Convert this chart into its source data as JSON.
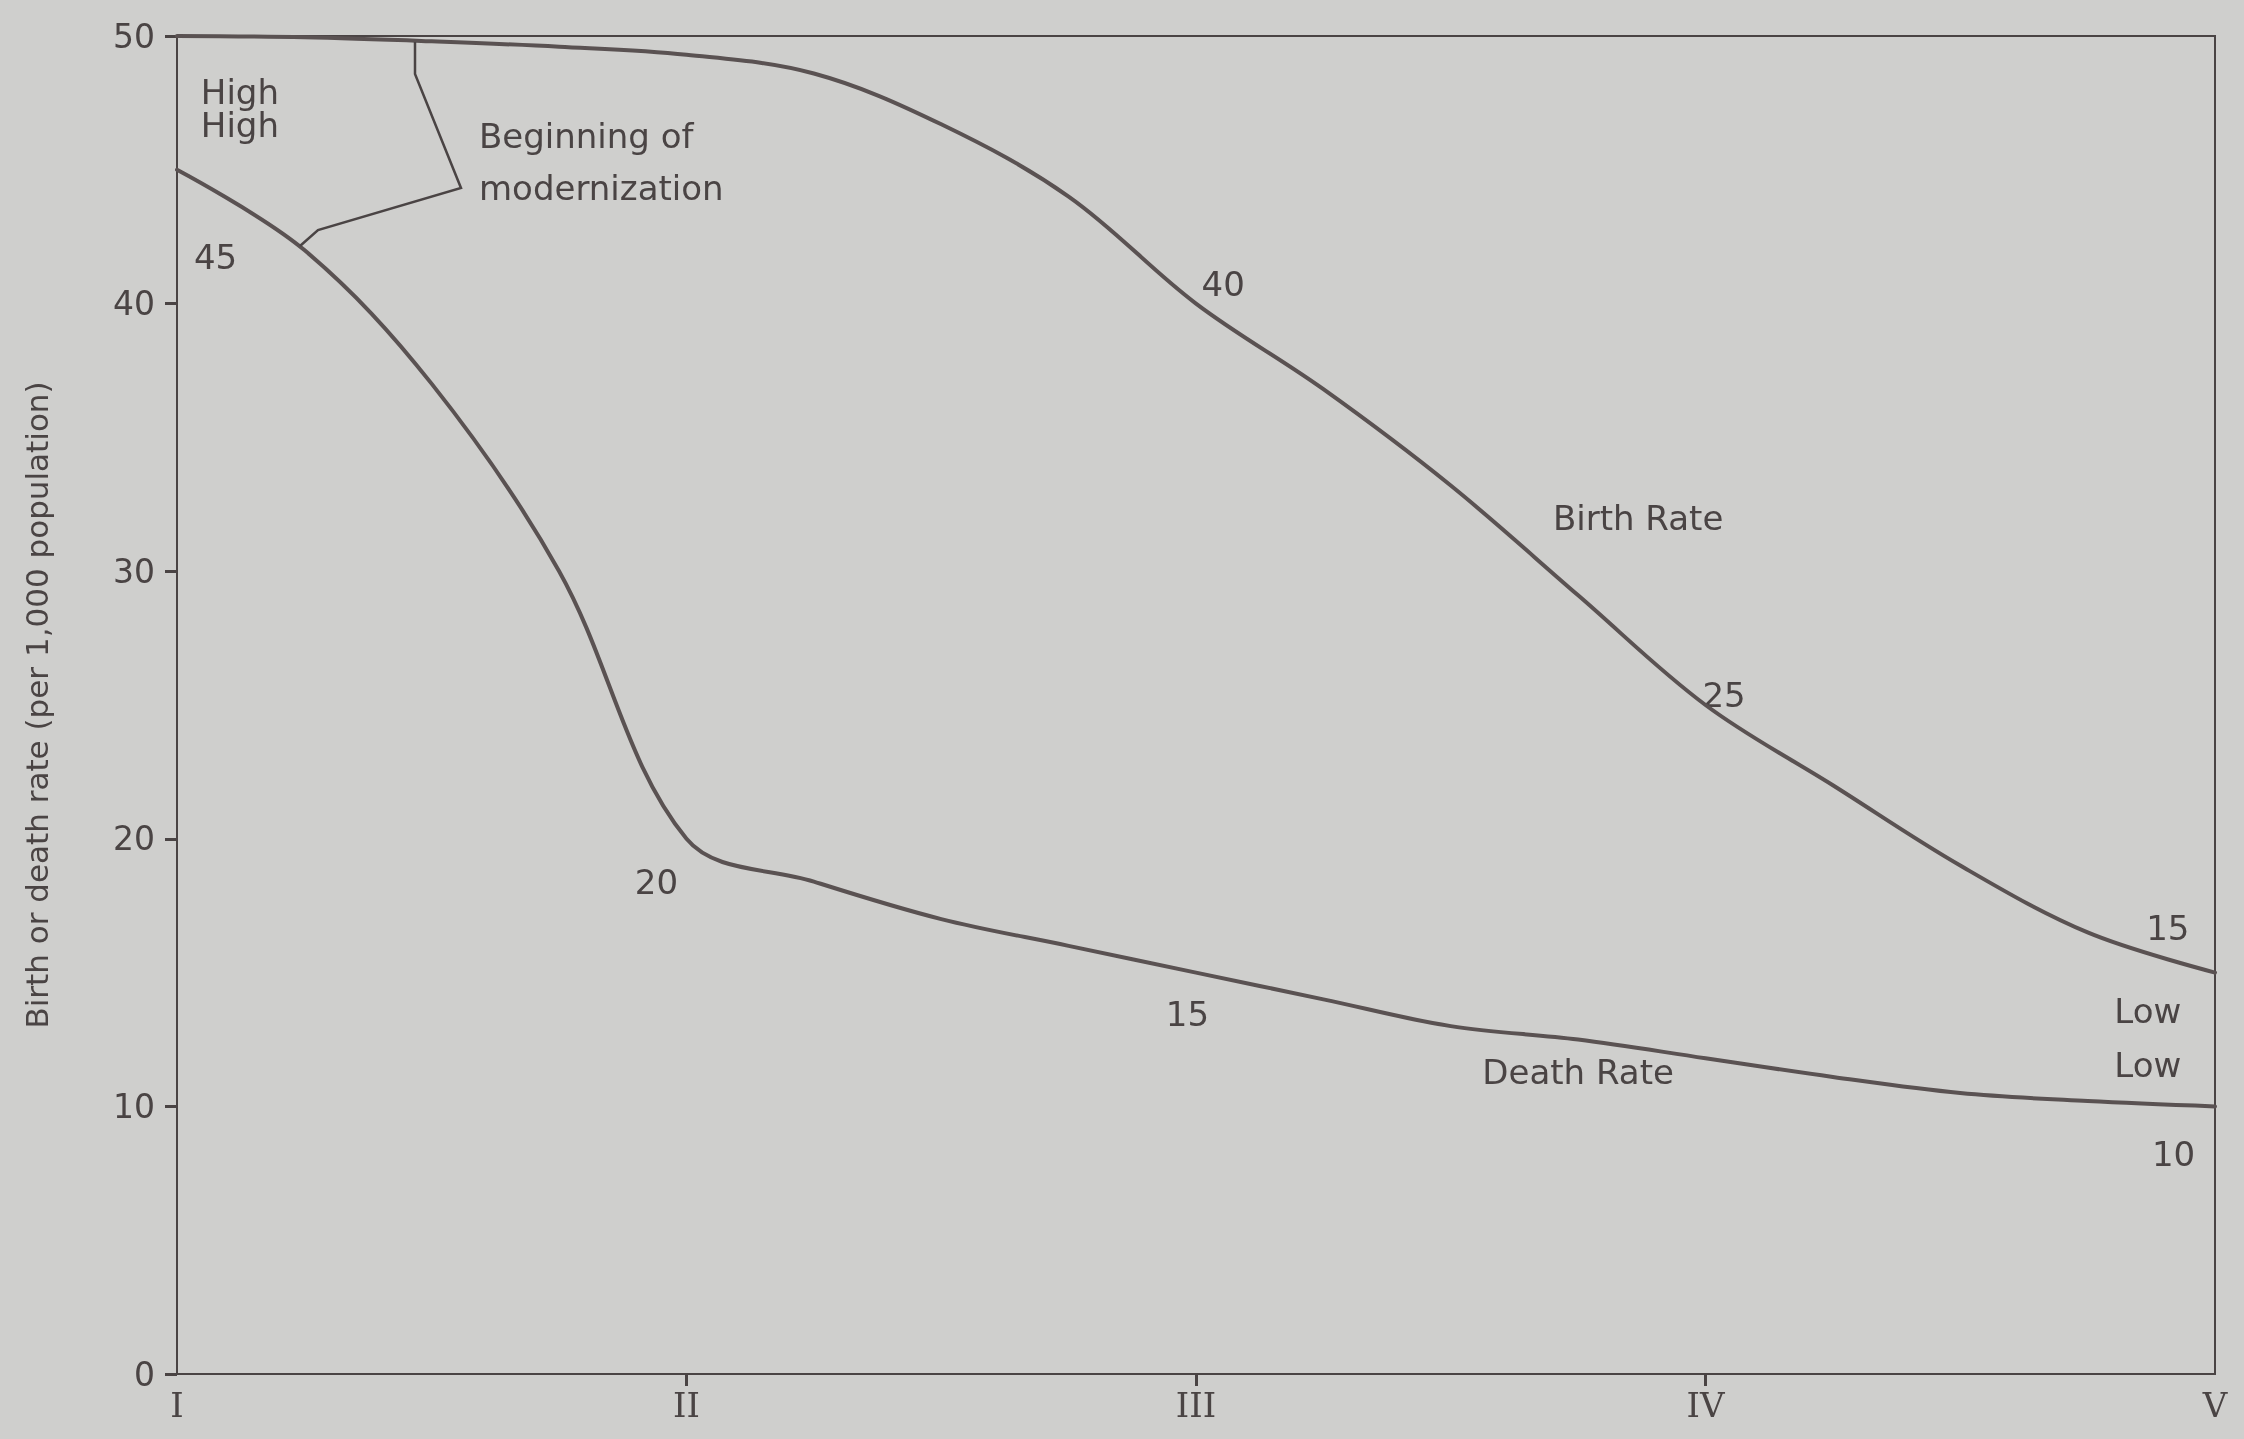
{
  "chart_data": {
    "type": "line",
    "ylabel": "Birth or death rate (per 1,000 population)",
    "categories": [
      "I",
      null,
      null,
      null,
      "II",
      null,
      null,
      null,
      "III",
      null,
      null,
      null,
      "IV",
      null,
      null,
      null,
      "V"
    ],
    "ylim": [
      0,
      50
    ],
    "yticks": [
      0,
      10,
      20,
      30,
      40,
      50
    ],
    "grid": false,
    "legend": false,
    "marker": "none",
    "line_style": "solid",
    "series": [
      {
        "name": "Birth Rate",
        "color": "#5a5252",
        "values": [
          50,
          49.95,
          49.8,
          49.6,
          49.3,
          48.6,
          46.7,
          44,
          40,
          36.8,
          33.2,
          29.1,
          25,
          22,
          19,
          16.5,
          15
        ]
      },
      {
        "name": "Death Rate",
        "color": "#5a5252",
        "values": [
          45,
          42,
          37,
          30,
          20,
          18.4,
          17,
          16,
          15,
          14,
          13,
          12.5,
          11.8,
          11.1,
          10.5,
          10.2,
          10
        ]
      }
    ],
    "annotations": [
      {
        "text": "High",
        "x": "I",
        "y": 50
      },
      {
        "text": "High",
        "x": "I",
        "y": 45
      },
      {
        "text": "45",
        "x": "I",
        "y": 45
      },
      "Beginning of modernization",
      {
        "text": "40",
        "x": "III",
        "y": 40
      },
      {
        "text": "25",
        "x": "IV",
        "y": 25
      },
      {
        "text": "20",
        "x": "II",
        "y": 20
      },
      {
        "text": "15",
        "x": "III",
        "y": 15
      },
      {
        "text": "15",
        "x": "V",
        "y": 15
      },
      {
        "text": "Low",
        "x": "V",
        "y": 15
      },
      {
        "text": "Low",
        "x": "V",
        "y": 10
      },
      {
        "text": "10",
        "x": "V",
        "y": 10
      }
    ]
  }
}
